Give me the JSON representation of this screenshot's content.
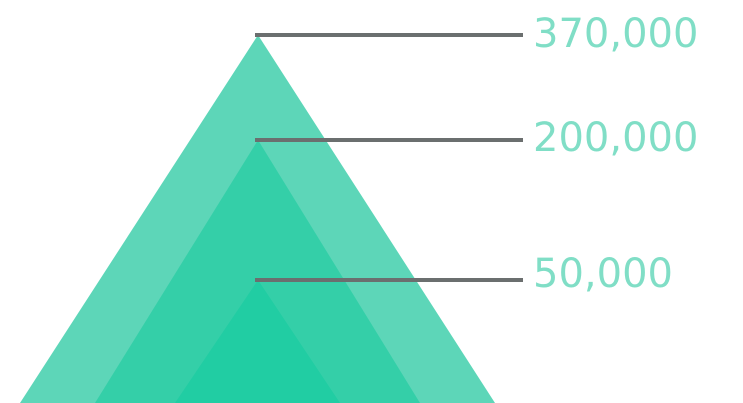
{
  "pyramid": {
    "levels": [
      {
        "value_label": "370,000",
        "fill": "#5dd6b8"
      },
      {
        "value_label": "200,000",
        "fill": "#34cfa8"
      },
      {
        "value_label": "50,000",
        "fill": "#21cda3"
      }
    ],
    "line_color": "#6b6f6f",
    "label_color": "#80dec6"
  }
}
